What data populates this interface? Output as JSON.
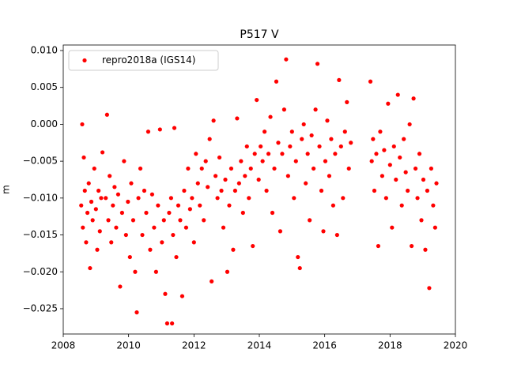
{
  "chart_data": {
    "type": "scatter",
    "title": "P517 V",
    "y_label": "m",
    "legend": "upper left",
    "xlim": [
      2008,
      2020
    ],
    "ylim": [
      -0.02843,
      0.01075
    ],
    "xticks": [
      2008,
      2010,
      2012,
      2014,
      2016,
      2018,
      2020
    ],
    "yticks": [
      {
        "value": -0.025,
        "label": "−0.025"
      },
      {
        "value": -0.02,
        "label": "−0.020"
      },
      {
        "value": -0.015,
        "label": "−0.015"
      },
      {
        "value": -0.01,
        "label": "−0.010"
      },
      {
        "value": -0.005,
        "label": "−0.005"
      },
      {
        "value": 0,
        "label": "0.000"
      },
      0.005,
      {
        "value": 0.01,
        "label": "0.010"
      }
    ],
    "series": [
      {
        "name": "repro2018a (IGS14)",
        "color": "#ff0000",
        "x": [
          2008.55,
          2008.58,
          2008.6,
          2008.63,
          2008.66,
          2008.7,
          2008.74,
          2008.78,
          2008.82,
          2008.86,
          2008.9,
          2008.95,
          2009.0,
          2009.04,
          2009.08,
          2009.12,
          2009.16,
          2009.2,
          2009.3,
          2009.34,
          2009.38,
          2009.42,
          2009.47,
          2009.52,
          2009.57,
          2009.62,
          2009.68,
          2009.74,
          2009.8,
          2009.86,
          2009.92,
          2009.98,
          2010.04,
          2010.08,
          2010.14,
          2010.2,
          2010.25,
          2010.3,
          2010.36,
          2010.42,
          2010.48,
          2010.54,
          2010.6,
          2010.66,
          2010.72,
          2010.78,
          2010.84,
          2010.9,
          2010.96,
          2011.02,
          2011.08,
          2011.12,
          2011.18,
          2011.24,
          2011.3,
          2011.33,
          2011.36,
          2011.4,
          2011.46,
          2011.52,
          2011.58,
          2011.64,
          2011.7,
          2011.76,
          2011.82,
          2011.88,
          2011.94,
          2012.0,
          2012.06,
          2012.12,
          2012.18,
          2012.24,
          2012.3,
          2012.36,
          2012.42,
          2012.48,
          2012.54,
          2012.6,
          2012.66,
          2012.72,
          2012.78,
          2012.84,
          2012.9,
          2012.96,
          2013.02,
          2013.08,
          2013.14,
          2013.2,
          2013.26,
          2013.32,
          2013.38,
          2013.44,
          2013.5,
          2013.56,
          2013.62,
          2013.68,
          2013.74,
          2013.8,
          2013.86,
          2013.92,
          2013.98,
          2014.04,
          2014.1,
          2014.16,
          2014.22,
          2014.28,
          2014.34,
          2014.4,
          2014.46,
          2014.52,
          2014.58,
          2014.64,
          2014.7,
          2014.76,
          2014.82,
          2014.88,
          2014.94,
          2015.0,
          2015.06,
          2015.12,
          2015.18,
          2015.24,
          2015.3,
          2015.36,
          2015.42,
          2015.48,
          2015.54,
          2015.6,
          2015.66,
          2015.72,
          2015.78,
          2015.84,
          2015.9,
          2015.96,
          2016.02,
          2016.08,
          2016.14,
          2016.2,
          2016.26,
          2016.32,
          2016.38,
          2016.44,
          2016.5,
          2016.56,
          2016.62,
          2016.68,
          2016.74,
          2016.8,
          2017.4,
          2017.44,
          2017.48,
          2017.52,
          2017.58,
          2017.64,
          2017.7,
          2017.76,
          2017.82,
          2017.88,
          2017.94,
          2018.0,
          2018.06,
          2018.12,
          2018.18,
          2018.24,
          2018.3,
          2018.36,
          2018.42,
          2018.48,
          2018.54,
          2018.6,
          2018.66,
          2018.72,
          2018.78,
          2018.84,
          2018.9,
          2018.96,
          2019.02,
          2019.08,
          2019.14,
          2019.2,
          2019.26,
          2019.32,
          2019.38,
          2019.42
        ],
        "values": [
          -0.011,
          0.0,
          -0.014,
          -0.0045,
          -0.009,
          -0.016,
          -0.012,
          -0.008,
          -0.0195,
          -0.0105,
          -0.013,
          -0.006,
          -0.0115,
          -0.017,
          -0.009,
          -0.0145,
          -0.01,
          -0.0038,
          -0.01,
          0.0013,
          -0.013,
          -0.007,
          -0.016,
          -0.011,
          -0.0085,
          -0.014,
          -0.0095,
          -0.022,
          -0.012,
          -0.005,
          -0.015,
          -0.0105,
          -0.018,
          -0.008,
          -0.013,
          -0.02,
          -0.0255,
          -0.01,
          -0.006,
          -0.015,
          -0.009,
          -0.012,
          -0.001,
          -0.017,
          -0.0095,
          -0.014,
          -0.02,
          -0.011,
          -0.0007,
          -0.016,
          -0.013,
          -0.023,
          -0.027,
          -0.012,
          -0.01,
          -0.027,
          -0.015,
          -0.0005,
          -0.018,
          -0.011,
          -0.013,
          -0.0233,
          -0.009,
          -0.014,
          -0.006,
          -0.0115,
          -0.01,
          -0.016,
          -0.004,
          -0.008,
          -0.011,
          -0.006,
          -0.013,
          -0.005,
          -0.0085,
          -0.002,
          -0.0213,
          0.0005,
          -0.007,
          -0.01,
          -0.0045,
          -0.009,
          -0.014,
          -0.0075,
          -0.02,
          -0.011,
          -0.006,
          -0.017,
          -0.009,
          0.0008,
          -0.008,
          -0.005,
          -0.012,
          -0.007,
          -0.003,
          -0.01,
          -0.006,
          -0.0165,
          -0.004,
          0.0033,
          -0.0075,
          -0.003,
          -0.005,
          -0.001,
          -0.009,
          -0.004,
          0.001,
          -0.012,
          -0.006,
          0.0058,
          -0.0025,
          -0.0145,
          -0.004,
          0.002,
          0.0088,
          -0.007,
          -0.003,
          -0.001,
          -0.01,
          -0.005,
          -0.018,
          -0.0195,
          -0.002,
          0.0,
          -0.008,
          -0.004,
          -0.013,
          -0.0015,
          -0.006,
          0.002,
          0.0082,
          -0.003,
          -0.009,
          -0.0145,
          -0.005,
          0.0005,
          -0.007,
          -0.002,
          -0.011,
          -0.004,
          -0.015,
          0.006,
          -0.003,
          -0.01,
          -0.001,
          0.003,
          -0.006,
          -0.0025,
          0.0058,
          -0.005,
          -0.002,
          -0.009,
          -0.004,
          -0.0165,
          -0.001,
          -0.007,
          -0.0035,
          -0.01,
          0.0028,
          -0.0055,
          -0.014,
          -0.003,
          -0.0075,
          0.004,
          -0.0045,
          -0.011,
          -0.002,
          -0.0065,
          -0.009,
          0.0,
          -0.0165,
          0.0035,
          -0.006,
          -0.01,
          -0.004,
          -0.013,
          -0.0075,
          -0.017,
          -0.009,
          -0.0222,
          -0.006,
          -0.011,
          -0.014,
          -0.008
        ]
      }
    ]
  }
}
